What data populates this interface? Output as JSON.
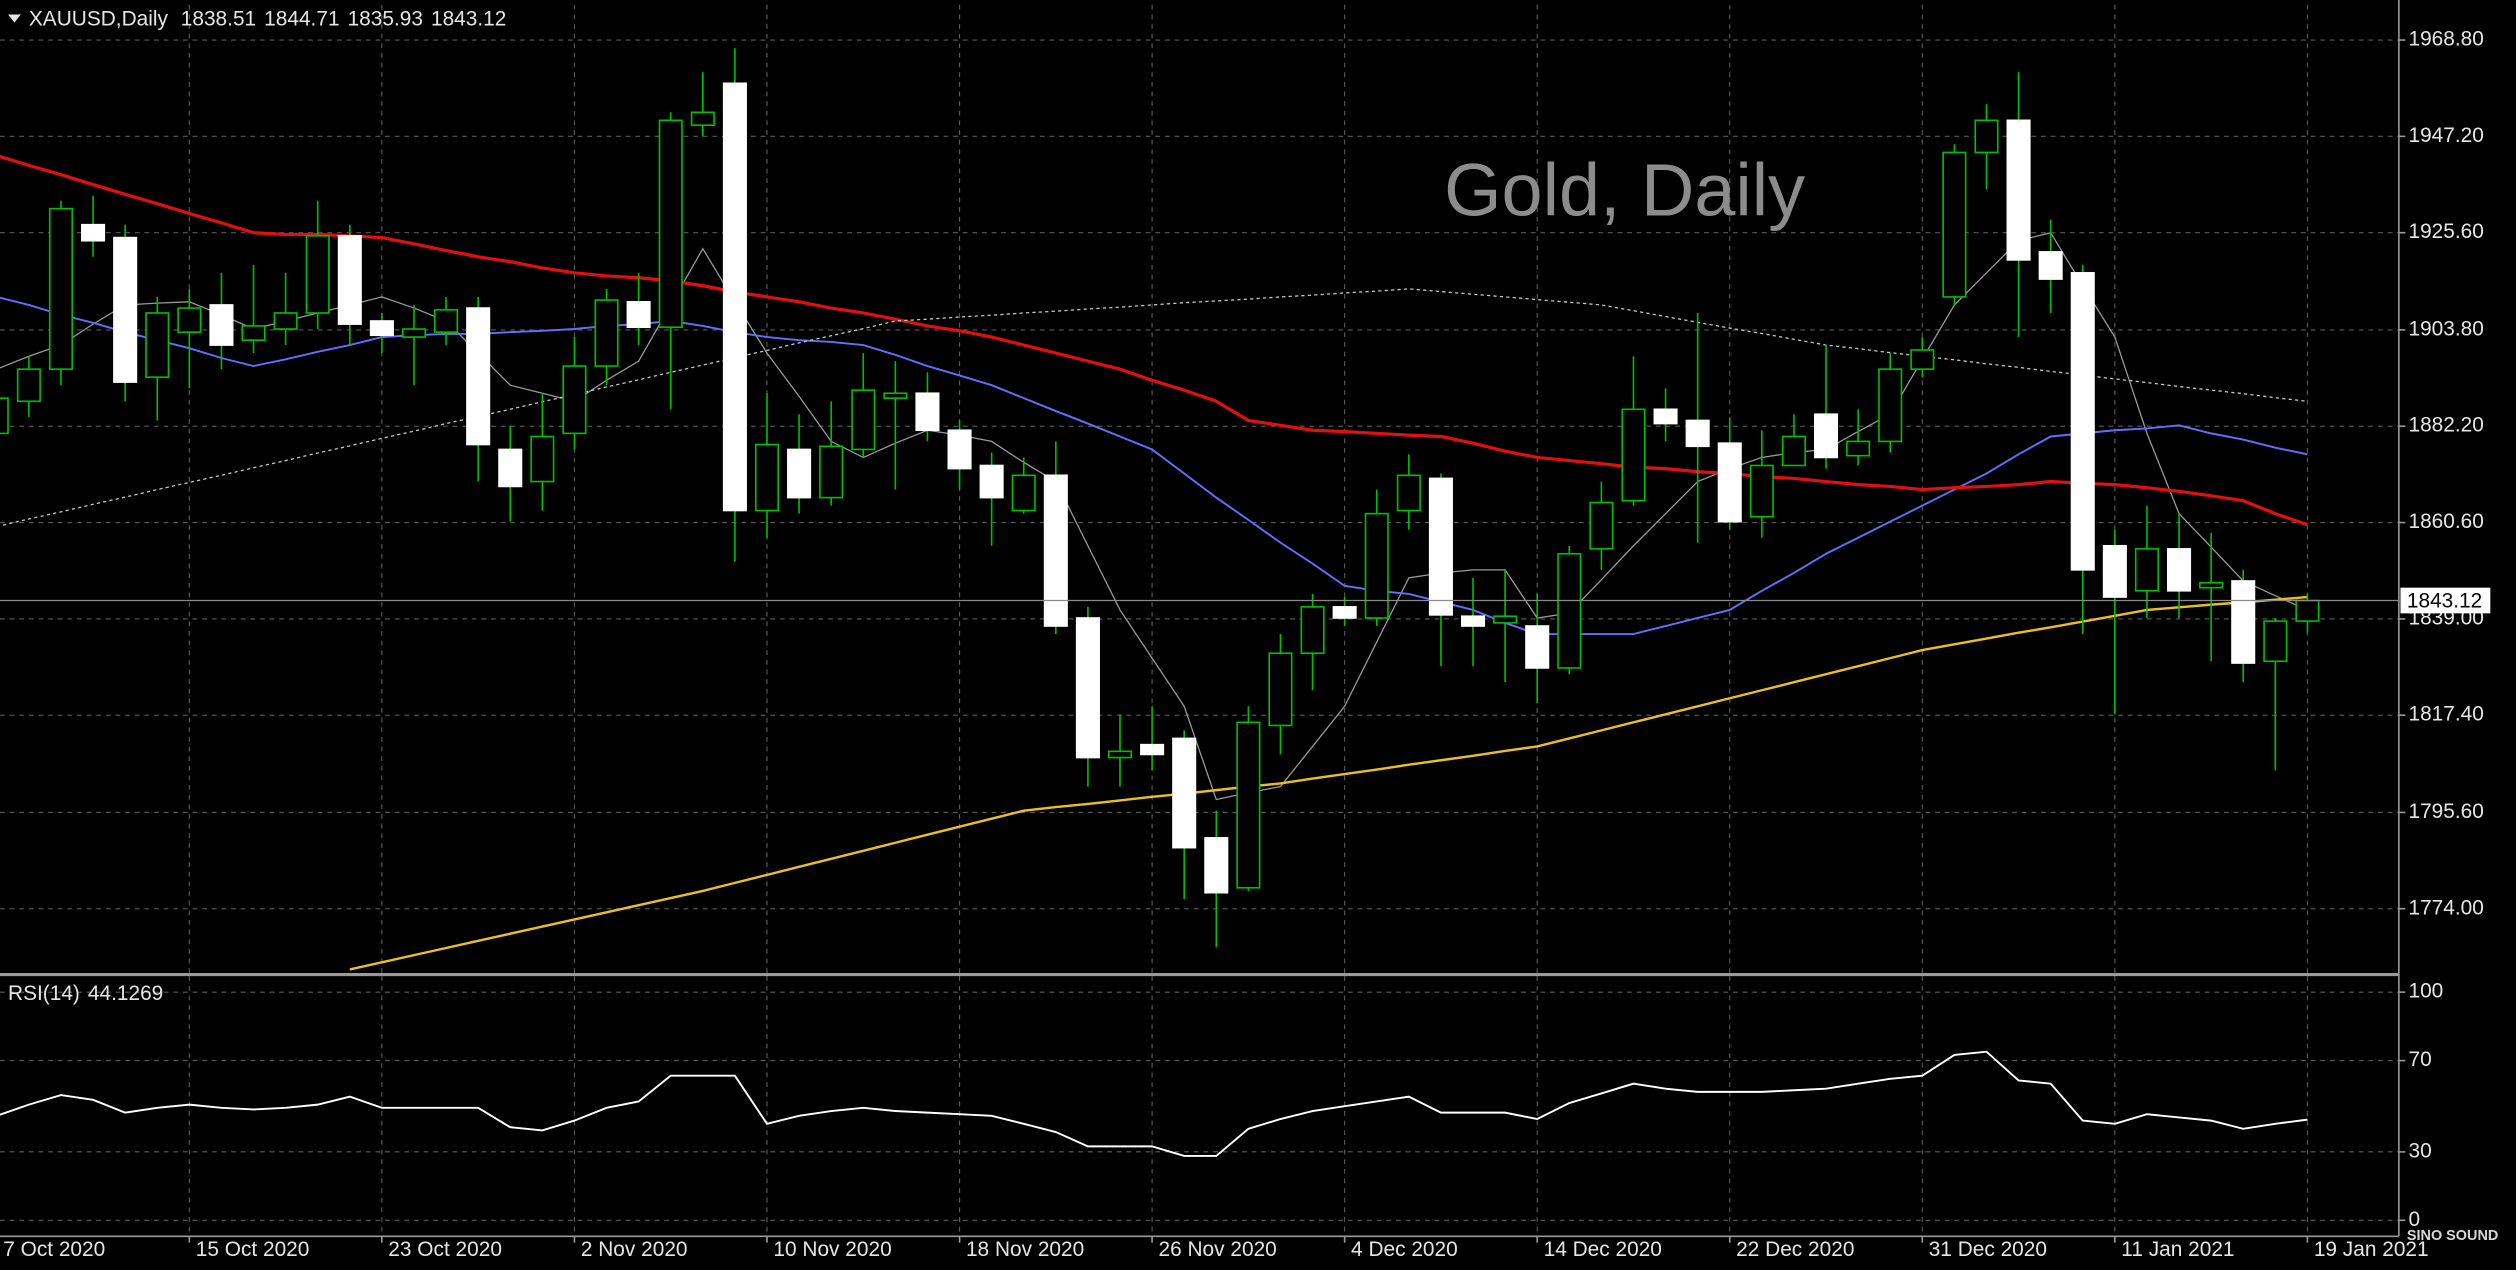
{
  "logo": "SINO SOUND",
  "chart_data": [
    {
      "type": "candlestick",
      "title": "XAUUSD,Daily",
      "annotation": "Gold, Daily",
      "bull_color": "#000000",
      "bear_color": "#ffffff",
      "wick_color": "#00c000",
      "outline_color": "#00c000",
      "price_line_color": "#8a8a8a",
      "grid": true,
      "categories": [
        "7 Oct 2020",
        null,
        null,
        null,
        null,
        null,
        "15 Oct 2020",
        null,
        null,
        null,
        null,
        null,
        "23 Oct 2020",
        null,
        null,
        null,
        null,
        null,
        "2 Nov 2020",
        null,
        null,
        null,
        null,
        null,
        "10 Nov 2020",
        null,
        null,
        null,
        null,
        null,
        "18 Nov 2020",
        null,
        null,
        null,
        null,
        null,
        "26 Nov 2020",
        null,
        null,
        null,
        null,
        null,
        "4 Dec 2020",
        null,
        null,
        null,
        null,
        null,
        "14 Dec 2020",
        null,
        null,
        null,
        null,
        null,
        "22 Dec 2020",
        null,
        null,
        null,
        null,
        null,
        "31 Dec 2020",
        null,
        null,
        null,
        null,
        null,
        "11 Jan 2021",
        null,
        null,
        null,
        null,
        null,
        "19 Jan 2021"
      ],
      "candles": [
        [
          1880.6,
          1891.4,
          1873.4,
          1888.5
        ],
        [
          1887.8,
          1897.9,
          1884.2,
          1895.0
        ],
        [
          1895.0,
          1932.8,
          1891.4,
          1931.0
        ],
        [
          1927.4,
          1933.9,
          1920.2,
          1923.8
        ],
        [
          1924.5,
          1927.4,
          1887.8,
          1892.1
        ],
        [
          1893.2,
          1911.2,
          1883.5,
          1907.6
        ],
        [
          1903.3,
          1913.0,
          1890.7,
          1908.7
        ],
        [
          1909.4,
          1916.6,
          1895.0,
          1900.4
        ],
        [
          1901.5,
          1918.4,
          1898.6,
          1904.7
        ],
        [
          1904.0,
          1916.6,
          1900.4,
          1907.6
        ],
        [
          1907.6,
          1932.8,
          1904.0,
          1924.9
        ],
        [
          1924.9,
          1927.4,
          1900.4,
          1905.1
        ],
        [
          1905.8,
          1907.6,
          1898.6,
          1902.6
        ],
        [
          1902.2,
          1909.4,
          1891.4,
          1904.0
        ],
        [
          1903.3,
          1911.2,
          1900.4,
          1908.3
        ],
        [
          1908.7,
          1911.2,
          1869.8,
          1878.1
        ],
        [
          1877.0,
          1882.4,
          1860.8,
          1868.7
        ],
        [
          1869.8,
          1889.6,
          1863.3,
          1879.9
        ],
        [
          1880.6,
          1902.2,
          1877.0,
          1895.7
        ],
        [
          1895.7,
          1913.0,
          1891.4,
          1910.5
        ],
        [
          1910.1,
          1916.6,
          1900.4,
          1904.4
        ],
        [
          1904.4,
          1952.6,
          1886.0,
          1950.8
        ],
        [
          1949.7,
          1961.6,
          1947.2,
          1952.6
        ],
        [
          1959.1,
          1967.0,
          1851.8,
          1863.3
        ],
        [
          1863.3,
          1889.6,
          1857.2,
          1878.1
        ],
        [
          1877.0,
          1884.9,
          1862.6,
          1866.2
        ],
        [
          1866.2,
          1887.8,
          1864.4,
          1877.7
        ],
        [
          1877.0,
          1898.6,
          1875.2,
          1890.3
        ],
        [
          1888.5,
          1896.8,
          1868.0,
          1889.6
        ],
        [
          1889.6,
          1894.3,
          1878.8,
          1881.3
        ],
        [
          1881.3,
          1883.5,
          1868.0,
          1872.7
        ],
        [
          1873.4,
          1876.3,
          1855.4,
          1866.2
        ],
        [
          1863.3,
          1875.2,
          1862.6,
          1871.2
        ],
        [
          1871.2,
          1878.8,
          1835.6,
          1837.4
        ],
        [
          1839.2,
          1841.7,
          1801.4,
          1807.9
        ],
        [
          1807.9,
          1817.6,
          1801.4,
          1809.3
        ],
        [
          1810.8,
          1819.4,
          1805.0,
          1808.6
        ],
        [
          1812.2,
          1814.0,
          1776.2,
          1787.7
        ],
        [
          1789.9,
          1796.0,
          1765.4,
          1777.6
        ],
        [
          1778.7,
          1819.4,
          1778.0,
          1815.8
        ],
        [
          1815.1,
          1835.6,
          1808.6,
          1831.3
        ],
        [
          1831.3,
          1844.6,
          1823.0,
          1841.7
        ],
        [
          1841.7,
          1843.9,
          1837.4,
          1839.2
        ],
        [
          1839.2,
          1868.0,
          1837.4,
          1862.6
        ],
        [
          1863.3,
          1875.9,
          1859.0,
          1871.2
        ],
        [
          1870.5,
          1871.6,
          1828.4,
          1839.9
        ],
        [
          1839.6,
          1848.2,
          1828.4,
          1837.4
        ],
        [
          1838.1,
          1850.0,
          1824.8,
          1839.6
        ],
        [
          1837.4,
          1844.6,
          1820.1,
          1828.0
        ],
        [
          1828.0,
          1855.4,
          1826.6,
          1853.6
        ],
        [
          1854.7,
          1869.8,
          1850.0,
          1865.1
        ],
        [
          1865.5,
          1897.9,
          1864.4,
          1886.0
        ],
        [
          1886.0,
          1890.7,
          1878.8,
          1882.8
        ],
        [
          1883.5,
          1907.6,
          1856.1,
          1877.7
        ],
        [
          1878.4,
          1884.2,
          1859.0,
          1860.8
        ],
        [
          1861.9,
          1881.3,
          1857.2,
          1873.4
        ],
        [
          1873.4,
          1884.9,
          1873.4,
          1879.9
        ],
        [
          1884.9,
          1900.4,
          1872.7,
          1875.2
        ],
        [
          1875.6,
          1886.0,
          1873.4,
          1878.8
        ],
        [
          1878.8,
          1898.6,
          1876.3,
          1895.0
        ],
        [
          1895.0,
          1902.2,
          1893.2,
          1899.3
        ],
        [
          1911.2,
          1945.4,
          1909.4,
          1943.6
        ],
        [
          1943.6,
          1954.4,
          1935.3,
          1950.8
        ],
        [
          1950.8,
          1961.6,
          1902.2,
          1919.5
        ],
        [
          1921.3,
          1928.5,
          1907.6,
          1915.2
        ],
        [
          1916.6,
          1918.4,
          1835.6,
          1850.0
        ],
        [
          1855.4,
          1859.0,
          1817.6,
          1843.9
        ],
        [
          1845.3,
          1864.4,
          1839.2,
          1854.7
        ],
        [
          1854.7,
          1862.6,
          1839.2,
          1845.3
        ],
        [
          1846.0,
          1858.3,
          1829.5,
          1847.1
        ],
        [
          1847.5,
          1850.0,
          1824.8,
          1829.1
        ],
        [
          1829.5,
          1839.2,
          1805.0,
          1838.5
        ],
        [
          1838.51,
          1844.71,
          1835.93,
          1843.12
        ]
      ],
      "series": [
        {
          "color": "#9a9a9a",
          "width": 0.8,
          "values": [
            1895.0,
            1897.9,
            1900.4,
            1905.1,
            1909.4,
            1909.8,
            1910.1,
            1907.2,
            1904.0,
            1905.8,
            1907.6,
            1909.4,
            1911.2,
            1908.7,
            1905.8,
            1898.6,
            1891.4,
            1889.6,
            1887.8,
            1892.5,
            1896.8,
            1909.4,
            1922.0,
            1910.1,
            1898.6,
            1888.9,
            1878.8,
            1875.2,
            1878.4,
            1881.3,
            1880.2,
            1878.8,
            1874.1,
            1869.8,
            1855.4,
            1841.0,
            1830.2,
            1819.4,
            1798.5,
            1800.0,
            1801.4,
            1810.4,
            1819.4,
            1833.8,
            1848.2,
            1849.3,
            1850.0,
            1850.0,
            1839.2,
            1840.3,
            1847.8,
            1855.4,
            1862.6,
            1869.8,
            1872.7,
            1875.2,
            1876.3,
            1877.0,
            1881.0,
            1884.9,
            1897.2,
            1909.4,
            1916.6,
            1923.8,
            1925.6,
            1913.7,
            1902.2,
            1880.6,
            1862.6,
            1855.1,
            1847.5,
            1844.2,
            1841.0
          ]
        },
        {
          "color": "#6a6aff",
          "width": 1.2,
          "values": [
            1911.2,
            1909.4,
            1907.2,
            1905.4,
            1903.3,
            1901.5,
            1899.7,
            1897.5,
            1895.7,
            1897.2,
            1898.9,
            1900.4,
            1902.2,
            1902.6,
            1902.9,
            1902.9,
            1903.3,
            1903.6,
            1904.0,
            1904.7,
            1905.1,
            1905.8,
            1904.7,
            1903.3,
            1902.2,
            1901.5,
            1901.1,
            1900.4,
            1898.2,
            1895.7,
            1893.6,
            1891.4,
            1888.5,
            1885.6,
            1882.8,
            1879.9,
            1877.0,
            1871.6,
            1866.2,
            1861.2,
            1856.1,
            1851.4,
            1846.4,
            1845.3,
            1844.6,
            1842.8,
            1841.0,
            1838.1,
            1835.6,
            1835.6,
            1835.6,
            1835.6,
            1837.4,
            1839.2,
            1841.0,
            1845.3,
            1849.3,
            1853.6,
            1857.2,
            1860.8,
            1864.4,
            1868.0,
            1871.6,
            1875.9,
            1879.9,
            1880.6,
            1881.3,
            1881.7,
            1882.4,
            1880.6,
            1879.2,
            1877.4,
            1875.9
          ]
        },
        {
          "color": "#e01010",
          "width": 2,
          "values": [
            1942.9,
            1940.7,
            1938.6,
            1936.4,
            1934.2,
            1932.1,
            1929.9,
            1927.8,
            1925.6,
            1925.2,
            1925.2,
            1924.9,
            1924.5,
            1923.1,
            1921.6,
            1920.2,
            1919.1,
            1917.7,
            1916.6,
            1915.9,
            1915.5,
            1914.8,
            1913.7,
            1912.3,
            1911.2,
            1910.1,
            1908.7,
            1907.6,
            1906.2,
            1904.7,
            1903.6,
            1902.2,
            1900.4,
            1898.6,
            1896.8,
            1895.0,
            1892.5,
            1890.3,
            1887.8,
            1883.5,
            1882.4,
            1881.3,
            1881.0,
            1880.6,
            1880.2,
            1879.9,
            1878.4,
            1876.6,
            1875.2,
            1874.5,
            1873.8,
            1873.0,
            1872.7,
            1872.0,
            1871.6,
            1870.9,
            1870.5,
            1869.8,
            1869.1,
            1868.7,
            1868.0,
            1868.4,
            1868.7,
            1869.1,
            1869.8,
            1869.4,
            1869.1,
            1868.4,
            1867.6,
            1866.6,
            1865.5,
            1862.6,
            1860.1
          ]
        },
        {
          "color": "#c8c8c8",
          "width": 0.8,
          "dash": true,
          "values": [
            1859.7,
            1861.4,
            1863.0,
            1864.7,
            1866.3,
            1868.0,
            1869.6,
            1871.2,
            1872.9,
            1874.5,
            1876.2,
            1877.8,
            1879.5,
            1881.1,
            1882.8,
            1884.4,
            1886.0,
            1887.7,
            1889.3,
            1891.0,
            1892.6,
            1894.3,
            1895.9,
            1897.6,
            1899.2,
            1900.9,
            1902.5,
            1904.1,
            1905.8,
            1906.2,
            1906.7,
            1907.1,
            1907.6,
            1908.0,
            1908.5,
            1908.9,
            1909.4,
            1909.9,
            1910.3,
            1910.7,
            1911.2,
            1911.6,
            1912.1,
            1912.5,
            1913.0,
            1912.4,
            1911.8,
            1911.2,
            1910.6,
            1910.0,
            1909.4,
            1908.1,
            1906.8,
            1905.5,
            1904.2,
            1903.0,
            1901.7,
            1900.4,
            1899.6,
            1898.7,
            1897.9,
            1897.1,
            1896.2,
            1895.4,
            1894.5,
            1893.7,
            1892.8,
            1892.0,
            1891.1,
            1890.3,
            1889.5,
            1888.6,
            1887.8
          ]
        },
        {
          "color": "#e8c020",
          "width": 1.5,
          "values": [
            null,
            null,
            null,
            null,
            null,
            null,
            null,
            null,
            null,
            null,
            null,
            1760.4,
            1762.0,
            1763.6,
            1765.2,
            1766.8,
            1768.4,
            1770.0,
            1771.6,
            1773.2,
            1774.8,
            1776.4,
            1778.0,
            1779.8,
            1781.6,
            1783.4,
            1785.2,
            1787.0,
            1788.8,
            1790.6,
            1792.4,
            1794.2,
            1796.0,
            1796.8,
            1797.5,
            1798.3,
            1799.1,
            1799.8,
            1800.6,
            1801.4,
            1802.1,
            1803.2,
            1804.2,
            1805.2,
            1806.3,
            1807.3,
            1808.3,
            1809.4,
            1810.4,
            1812.2,
            1814.0,
            1815.8,
            1817.6,
            1819.4,
            1821.2,
            1823.0,
            1824.8,
            1826.6,
            1828.4,
            1830.2,
            1832.0,
            1833.3,
            1834.6,
            1835.9,
            1837.1,
            1838.4,
            1839.7,
            1841.0,
            1841.6,
            1842.2,
            1842.7,
            1843.3,
            1843.9
          ]
        }
      ],
      "ylim": [
        1759.6,
        1976.7
      ],
      "yticks": [
        {
          "value": 1968.8,
          "label": "1968.80"
        },
        {
          "value": 1947.2,
          "label": "1947.20"
        },
        {
          "value": 1925.6,
          "label": "1925.60"
        },
        {
          "value": 1903.8,
          "label": "1903.80"
        },
        {
          "value": 1882.2,
          "label": "1882.20"
        },
        {
          "value": 1860.6,
          "label": "1860.60"
        },
        {
          "value": 1839,
          "label": "1839.00"
        },
        {
          "value": 1817.4,
          "label": "1817.40"
        },
        {
          "value": 1795.6,
          "label": "1795.60"
        },
        {
          "value": 1774,
          "label": "1774.00"
        }
      ]
    },
    {
      "type": "line",
      "title": "RSI(14)",
      "grid": true,
      "series": [
        {
          "color": "#ffffff",
          "width": 1.2,
          "values": [
            45.8,
            50.7,
            54.9,
            52.8,
            47.2,
            49.3,
            50.7,
            49.3,
            48.6,
            49.3,
            50.7,
            54.2,
            49.3,
            49.3,
            49.3,
            49.3,
            40.8,
            39.4,
            43.7,
            49.3,
            52.1,
            63.4,
            63.4,
            63.4,
            42.3,
            45.8,
            47.9,
            49.3,
            47.9,
            47.2,
            46.5,
            45.8,
            42.3,
            38.7,
            32.4,
            32.4,
            32.4,
            28.2,
            28.2,
            40.1,
            44.4,
            47.9,
            50.0,
            52.1,
            54.2,
            47.2,
            47.2,
            47.2,
            44.4,
            51.4,
            55.6,
            59.9,
            57.7,
            56.3,
            56.3,
            56.3,
            57.0,
            57.7,
            59.9,
            62.0,
            63.4,
            72.5,
            73.9,
            61.3,
            59.9,
            43.7,
            42.3,
            46.5,
            45.1,
            43.7,
            40.1,
            42.3,
            44.1269
          ]
        }
      ],
      "ylim": [
        -7,
        107
      ],
      "yticks": [
        0,
        30,
        70,
        100
      ]
    }
  ]
}
